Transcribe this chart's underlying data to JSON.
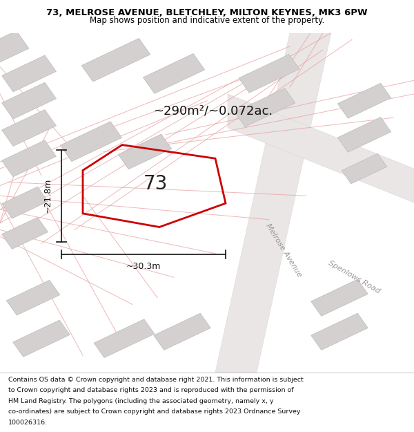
{
  "title_line1": "73, MELROSE AVENUE, BLETCHLEY, MILTON KEYNES, MK3 6PW",
  "title_line2": "Map shows position and indicative extent of the property.",
  "footer_lines": [
    "Contains OS data © Crown copyright and database right 2021. This information is subject",
    "to Crown copyright and database rights 2023 and is reproduced with the permission of",
    "HM Land Registry. The polygons (including the associated geometry, namely x, y",
    "co-ordinates) are subject to Crown copyright and database rights 2023 Ordnance Survey",
    "100026316."
  ],
  "map_bg": "#f2eeee",
  "title_bg": "#ffffff",
  "footer_bg": "#ffffff",
  "poly_color": "#cc0000",
  "poly_lw": 2.0,
  "bld_face": "#d4d0d0",
  "bld_edge": "#bbbbbb",
  "pink_line_color": "#e8a0a0",
  "road_label_color": "#999999",
  "dim_color": "#111111",
  "property_number": "73",
  "area_text": "~290m²/~0.072ac.",
  "dim_h": "~21.8m",
  "dim_w": "~30.3m",
  "road_melrose": "Melrose Avenue",
  "road_spenlows": "Spenlows Road",
  "title_fontsize": 9.5,
  "subtitle_fontsize": 8.5,
  "area_fontsize": 13,
  "number_fontsize": 20,
  "dim_fontsize": 9,
  "road_fontsize": 8,
  "footer_fontsize": 6.8
}
